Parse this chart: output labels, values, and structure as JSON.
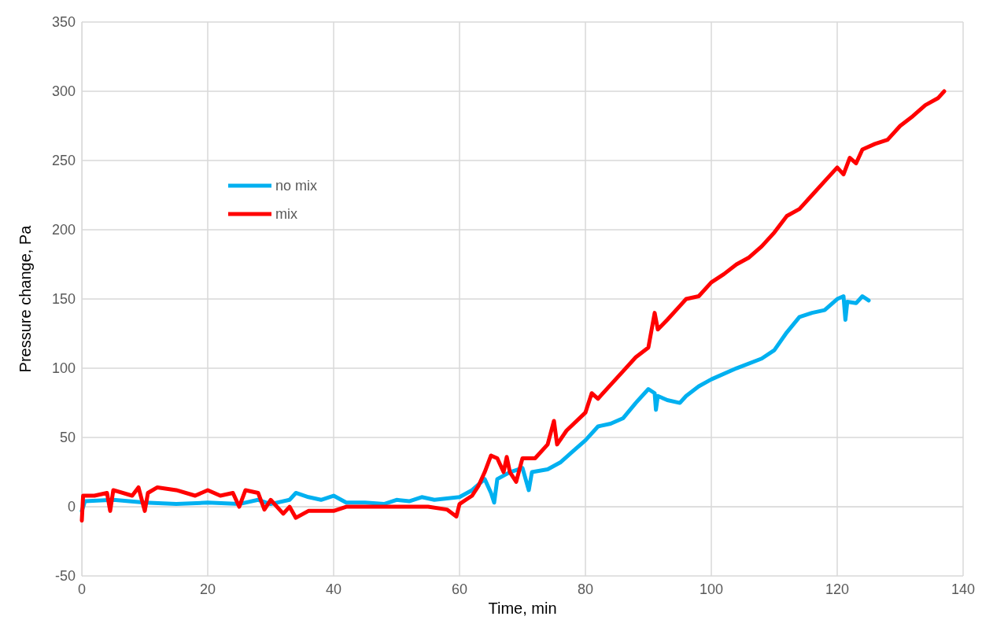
{
  "chart_data": {
    "type": "line",
    "xlabel": "Time, min",
    "ylabel": "Pressure change, Pa",
    "xlim": [
      0,
      140
    ],
    "xticks": [
      0,
      20,
      40,
      60,
      80,
      100,
      120,
      140
    ],
    "ylim": [
      -50,
      350
    ],
    "yticks": [
      -50,
      0,
      50,
      100,
      150,
      200,
      250,
      300,
      350
    ],
    "grid": true,
    "legend": "top left",
    "marker": "none",
    "line_style": "solid",
    "series": [
      {
        "name": "no mix",
        "color": "#00b0f0",
        "x": [
          0,
          0.5,
          5,
          10,
          15,
          20,
          25,
          28,
          30,
          33,
          34,
          36,
          38,
          40,
          42,
          45,
          48,
          50,
          52,
          54,
          56,
          58,
          60,
          62,
          64,
          65,
          65.5,
          66,
          68,
          70,
          71,
          71.5,
          74,
          76,
          78,
          80,
          82,
          84,
          86,
          88,
          90,
          91,
          91.2,
          91.5,
          93,
          95,
          96,
          98,
          100,
          104,
          108,
          110,
          112,
          114,
          116,
          118,
          120,
          121,
          121.3,
          121.6,
          123,
          124,
          125
        ],
        "values": [
          -3,
          4,
          5,
          3,
          2,
          3,
          2,
          5,
          2,
          5,
          10,
          7,
          5,
          8,
          3,
          3,
          2,
          5,
          4,
          7,
          5,
          6,
          7,
          12,
          20,
          10,
          3,
          20,
          25,
          28,
          12,
          25,
          27,
          32,
          40,
          48,
          58,
          60,
          64,
          75,
          85,
          82,
          70,
          80,
          77,
          75,
          80,
          87,
          92,
          100,
          107,
          113,
          126,
          137,
          140,
          142,
          150,
          152,
          135,
          148,
          147,
          152,
          149
        ]
      },
      {
        "name": "mix",
        "color": "#ff0000",
        "x": [
          0,
          0.2,
          2,
          4,
          4.5,
          5,
          8,
          9,
          10,
          10.5,
          12,
          15,
          18,
          20,
          22,
          24,
          25,
          26,
          28,
          29,
          30,
          31,
          32,
          33,
          34,
          36,
          38,
          40,
          42,
          45,
          50,
          55,
          58,
          59.5,
          60,
          61,
          62,
          63,
          64,
          65,
          66,
          67,
          67.5,
          68,
          69,
          70,
          71,
          72,
          74,
          75,
          75.5,
          77,
          80,
          81,
          82,
          84,
          86,
          88,
          90,
          91,
          91.5,
          93,
          95,
          96,
          98,
          100,
          102,
          104,
          106,
          108,
          110,
          112,
          114,
          116,
          118,
          120,
          121,
          122,
          123,
          124,
          126,
          128,
          130,
          132,
          134,
          136,
          137
        ],
        "values": [
          -10,
          8,
          8,
          10,
          -3,
          12,
          8,
          14,
          -3,
          10,
          14,
          12,
          8,
          12,
          8,
          10,
          0,
          12,
          10,
          -2,
          5,
          0,
          -5,
          0,
          -8,
          -3,
          -3,
          -3,
          0,
          0,
          0,
          0,
          -2,
          -7,
          2,
          5,
          8,
          15,
          25,
          37,
          35,
          25,
          36,
          25,
          18,
          35,
          35,
          35,
          45,
          62,
          45,
          55,
          68,
          82,
          78,
          88,
          98,
          108,
          115,
          140,
          128,
          135,
          145,
          150,
          152,
          162,
          168,
          175,
          180,
          188,
          198,
          210,
          215,
          225,
          235,
          245,
          240,
          252,
          248,
          258,
          262,
          265,
          275,
          282,
          290,
          295,
          300
        ]
      }
    ]
  }
}
